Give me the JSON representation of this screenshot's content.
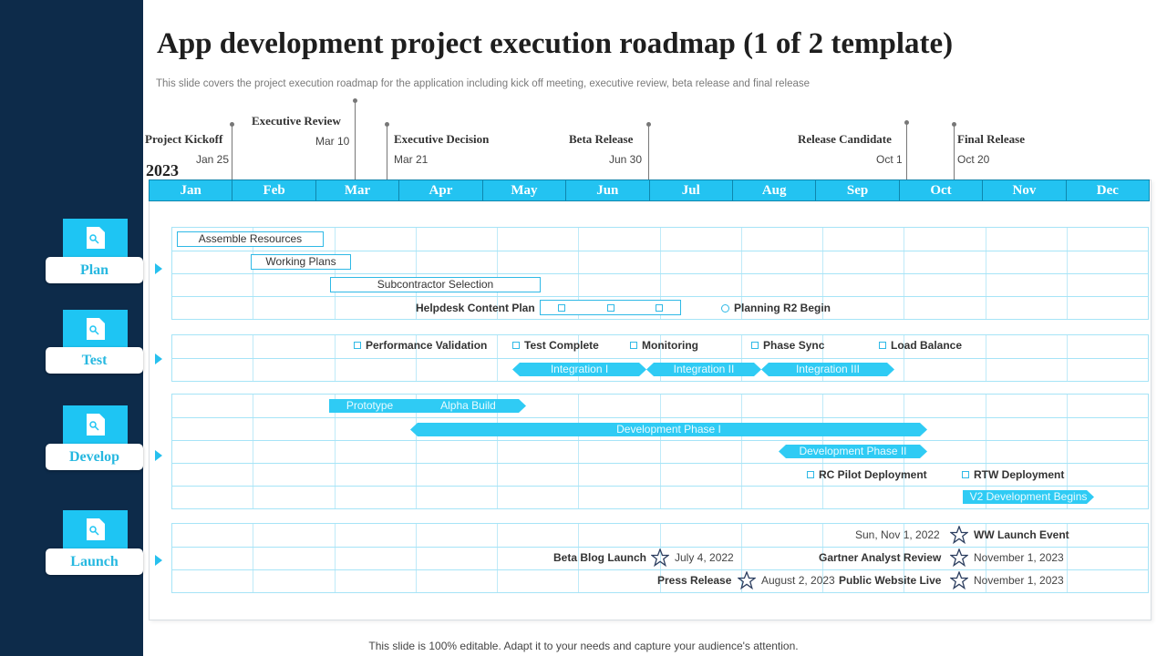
{
  "title": "App development project execution roadmap (1 of 2 template)",
  "subtitle": "This slide covers the project execution roadmap for the application including kick off meeting, executive review, beta release and final release",
  "footer": "This slide is 100% editable. Adapt it to your needs and capture your audience's attention.",
  "year": "2023",
  "months": [
    "Jan",
    "Feb",
    "Mar",
    "Apr",
    "May",
    "Jun",
    "Jul",
    "Aug",
    "Sep",
    "Oct",
    "Nov",
    "Dec"
  ],
  "milestones": [
    {
      "title": "Project Kickoff",
      "date": "Jan 25"
    },
    {
      "title": "Executive Review",
      "date": "Mar 10"
    },
    {
      "title": "Executive Decision",
      "date": "Mar 21"
    },
    {
      "title": "Beta Release",
      "date": "Jun 30"
    },
    {
      "title": "Release Candidate",
      "date": "Oct 1"
    },
    {
      "title": "Final Release",
      "date": "Oct 20"
    }
  ],
  "phases": [
    {
      "label": "Plan",
      "icon": "document-icon"
    },
    {
      "label": "Test",
      "icon": "document-icon"
    },
    {
      "label": "Develop",
      "icon": "document-icon"
    },
    {
      "label": "Launch",
      "icon": "document-icon"
    }
  ],
  "plan": {
    "assemble_resources": "Assemble Resources",
    "working_plans": "Working Plans",
    "subcontractor_selection": "Subcontractor Selection",
    "helpdesk_content_plan": "Helpdesk Content Plan",
    "planning_r2_begin": "Planning  R2 Begin"
  },
  "test": {
    "performance_validation": "Performance Validation",
    "test_complete": "Test Complete",
    "monitoring": "Monitoring",
    "phase_sync": "Phase Sync",
    "load_balance": "Load Balance",
    "integration_1": "Integration I",
    "integration_2": "Integration II",
    "integration_3": "Integration III"
  },
  "develop": {
    "prototype": "Prototype",
    "alpha_build": "Alpha Build",
    "development_phase_1": "Development Phase I",
    "development_phase_2": "Development Phase II",
    "rc_pilot_deployment": "RC Pilot Deployment",
    "rtw_deployment": "RTW Deployment",
    "v2_development_begins": "V2 Development Begins"
  },
  "launch": {
    "ww_launch_date": "Sun, Nov 1, 2022",
    "ww_launch_event": "WW Launch Event",
    "beta_blog_launch": "Beta Blog  Launch",
    "beta_blog_date": "July 4, 2022",
    "gartner_analyst_review": "Gartner Analyst Review",
    "gartner_date": "November 1, 2023",
    "press_release": "Press Release",
    "press_release_date": "August 2, 2023",
    "public_website_live": "Public Website Live",
    "public_website_date": "November 1, 2023"
  },
  "colors": {
    "sidebar": "#0d2b4a",
    "accent": "#23c3f1",
    "bar": "#2fcbf4"
  }
}
